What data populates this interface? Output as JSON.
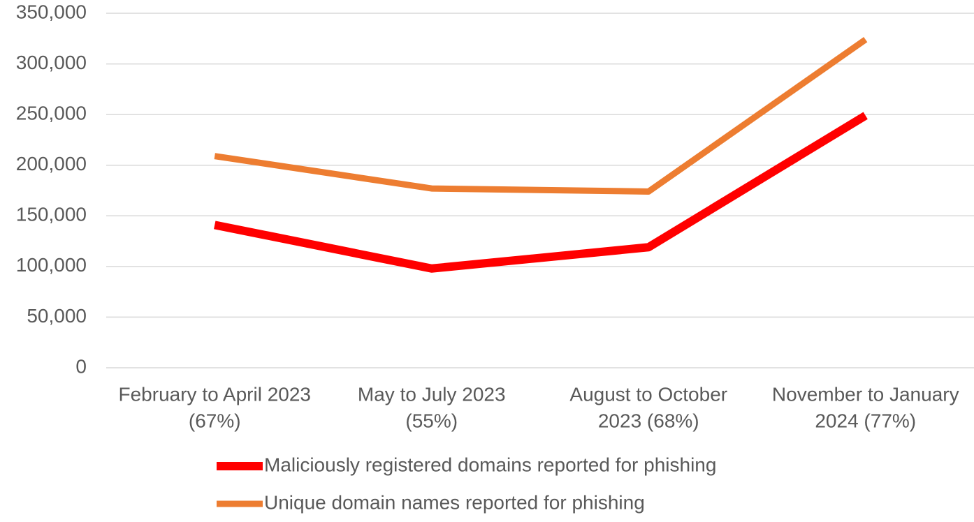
{
  "chart_data": {
    "type": "line",
    "categories": [
      [
        "February to April 2023",
        "(67%)"
      ],
      [
        "May to July 2023",
        "(55%)"
      ],
      [
        "August to October",
        "2023 (68%)"
      ],
      [
        "November to January",
        "2024 (77%)"
      ]
    ],
    "series": [
      {
        "name": "Maliciously registered domains reported for phishing",
        "color": "#ff0000",
        "values": [
          141000,
          98000,
          119000,
          249000
        ]
      },
      {
        "name": "Unique domain names reported for phishing",
        "color": "#ed7d31",
        "values": [
          209000,
          177000,
          174000,
          324000
        ]
      }
    ],
    "ylim": [
      0,
      350000
    ],
    "yticks": [
      0,
      {
        "value": 50000,
        "label": "50,000"
      },
      {
        "value": 100000,
        "label": "100,000"
      },
      {
        "value": 150000,
        "label": "150,000"
      },
      {
        "value": 200000,
        "label": "200,000"
      },
      {
        "value": 250000,
        "label": "250,000"
      },
      {
        "value": 300000,
        "label": "300,000"
      },
      {
        "value": 350000,
        "label": "350,000"
      }
    ],
    "grid": true
  }
}
